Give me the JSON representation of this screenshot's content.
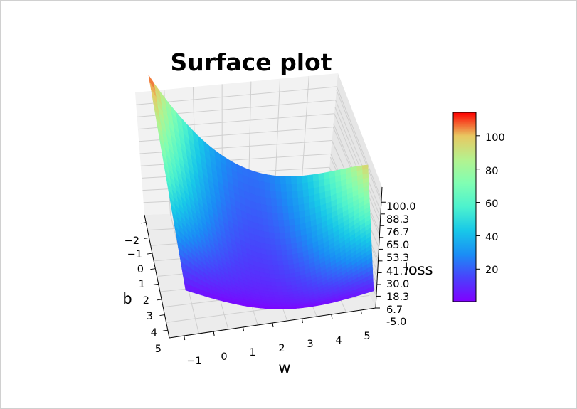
{
  "chart_data": {
    "type": "surface",
    "title": "Surface plot",
    "xlabel": "w",
    "ylabel": "b",
    "zlabel": "loss",
    "x_ticks": [
      "−1",
      "0",
      "1",
      "2",
      "3",
      "4",
      "5"
    ],
    "y_ticks": [
      "−2",
      "−1",
      "0",
      "1",
      "2",
      "3",
      "4",
      "5"
    ],
    "z_ticks": [
      "-5.0",
      "6.7",
      "18.3",
      "30.0",
      "41.7",
      "53.3",
      "65.0",
      "76.7",
      "88.3",
      "100.0"
    ],
    "xlim": [
      -1.5,
      5.5
    ],
    "ylim": [
      -2.5,
      5.5
    ],
    "zlim": [
      -5.0,
      115.0
    ],
    "colormap": "rainbow",
    "surface_corner_values": {
      "w=-1,b=-2": 112,
      "w=5,b=-2": 72,
      "w=-1,b=5": 5,
      "w=5,b=5": 5
    },
    "minimum_loss": 0.5,
    "maximum_loss": 114,
    "colorbar": {
      "ticks": [
        "20",
        "40",
        "60",
        "80",
        "100"
      ],
      "range": [
        0.5,
        114
      ]
    },
    "grid": true
  }
}
